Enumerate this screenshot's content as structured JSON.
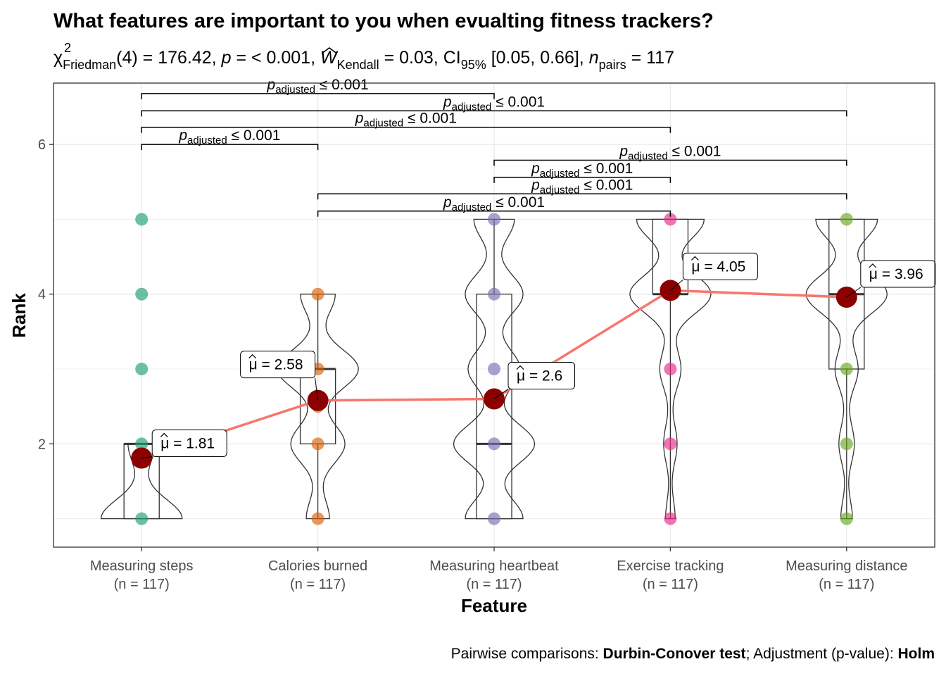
{
  "chart_data": {
    "type": "violin-box-scatter",
    "title": "What features are important to you when evualting fitness trackers?",
    "subtitle": {
      "chi": "χ",
      "chi_sup": "2",
      "chi_sub": "Friedman",
      "df_part": "(4) = 176.42,",
      "p_symbol": "p",
      "p_part": "= < 0.001,",
      "w_symbol": "W",
      "w_sub": "Kendall",
      "w_part": "= 0.03, CI",
      "ci_sub": "95%",
      "ci_part": "[0.05, 0.66],",
      "n_symbol": "n",
      "n_sub": "pairs",
      "n_part": "= 117"
    },
    "xlabel": "Feature",
    "ylabel": "Rank",
    "ylim": [
      0.62,
      6.82
    ],
    "yticks": [
      2,
      4,
      6
    ],
    "grid": true,
    "categories": [
      {
        "name": "Measuring steps",
        "n_label": "(n = 117)",
        "color": "#1B9E77",
        "mean": 1.81,
        "mean_label": "1.81",
        "box": [
          1,
          1,
          2,
          2,
          2
        ],
        "points": [
          1,
          2,
          3,
          4,
          5
        ]
      },
      {
        "name": "Calories burned",
        "n_label": "(n = 117)",
        "color": "#D95F02",
        "mean": 2.58,
        "mean_label": "2.58",
        "box": [
          1,
          2,
          3,
          3,
          4
        ],
        "points": [
          1,
          2,
          2.5,
          3,
          4
        ]
      },
      {
        "name": "Measuring heartbeat",
        "n_label": "(n = 117)",
        "color": "#7570B3",
        "mean": 2.6,
        "mean_label": "2.6",
        "box": [
          1,
          1,
          2,
          4,
          5
        ],
        "points": [
          1,
          2,
          3,
          4,
          5
        ]
      },
      {
        "name": "Exercise tracking",
        "n_label": "(n = 117)",
        "color": "#E7298A",
        "mean": 4.05,
        "mean_label": "4.05",
        "box": [
          1,
          4,
          4,
          5,
          5
        ],
        "points": [
          1,
          2,
          3,
          4,
          5
        ]
      },
      {
        "name": "Measuring distance",
        "n_label": "(n = 117)",
        "color": "#66A61E",
        "mean": 3.96,
        "mean_label": "3.96",
        "box": [
          1,
          3,
          4,
          5,
          5
        ],
        "points": [
          1,
          2,
          3,
          4,
          5
        ]
      }
    ],
    "mean_symbol": "μ",
    "mean_eq": "=",
    "comparisons": [
      {
        "groups": [
          1,
          2
        ],
        "y": 6.0,
        "label": "≤ 0.001"
      },
      {
        "groups": [
          1,
          4
        ],
        "y": 6.23,
        "label": "≤ 0.001"
      },
      {
        "groups": [
          1,
          5
        ],
        "y": 6.45,
        "label": "≤ 0.001"
      },
      {
        "groups": [
          1,
          3
        ],
        "y": 6.68,
        "label": "≤ 0.001"
      },
      {
        "groups": [
          3,
          5
        ],
        "y": 5.79,
        "label": "≤ 0.001"
      },
      {
        "groups": [
          3,
          4
        ],
        "y": 5.56,
        "label": "≤ 0.001"
      },
      {
        "groups": [
          2,
          5
        ],
        "y": 5.34,
        "label": "≤ 0.001"
      },
      {
        "groups": [
          2,
          4
        ],
        "y": 5.11,
        "label": "≤ 0.001"
      }
    ],
    "p_label_symbol": "p",
    "p_label_sub": "adjusted",
    "caption": {
      "prefix": "Pairwise comparisons: ",
      "test": "Durbin-Conover test",
      "middle": "; Adjustment (p-value): ",
      "method": "Holm"
    },
    "colors": {
      "mean_point": "#8B0000",
      "mean_line": "#F8766D"
    }
  }
}
